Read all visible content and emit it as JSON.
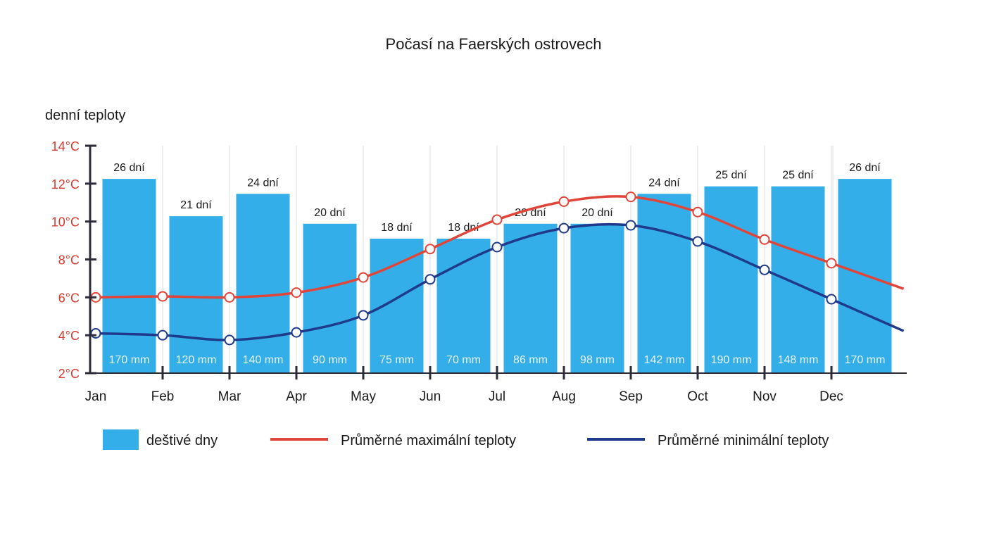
{
  "chart_data": {
    "type": "bar",
    "title": "Počasí na Faerských ostrovech",
    "ylabel": "denní teploty",
    "ylim": [
      2,
      14
    ],
    "yticks": [
      "2°C",
      "4°C",
      "6°C",
      "8°C",
      "10°C",
      "12°C",
      "14°C"
    ],
    "yticks_values": [
      2,
      4,
      6,
      8,
      10,
      12,
      14
    ],
    "categories": [
      "Jan",
      "Feb",
      "Mar",
      "Apr",
      "May",
      "Jun",
      "Jul",
      "Aug",
      "Sep",
      "Oct",
      "Nov",
      "Dec"
    ],
    "grid": true,
    "legend_position": "bottom",
    "series": [
      {
        "name": "deštivé dny",
        "kind": "bar",
        "color": "#33aee8",
        "rain_days": [
          26,
          21,
          24,
          20,
          18,
          18,
          20,
          20,
          24,
          25,
          25,
          26
        ],
        "day_labels": [
          "26 dní",
          "21 dní",
          "24 dní",
          "20 dní",
          "18 dní",
          "18 dní",
          "20 dní",
          "20 dní",
          "24 dní",
          "25 dní",
          "25 dní",
          "26 dní"
        ],
        "precipitation_labels": [
          "170 mm",
          "120 mm",
          "140 mm",
          "90 mm",
          "75 mm",
          "70 mm",
          "86 mm",
          "98 mm",
          "142 mm",
          "190 mm",
          "148 mm",
          "170 mm"
        ]
      },
      {
        "name": "Průměrné maximální teploty",
        "kind": "line",
        "color": "#e0453a",
        "values": [
          6.0,
          6.05,
          6.0,
          6.25,
          7.05,
          8.55,
          10.1,
          11.05,
          11.3,
          10.5,
          9.05,
          7.8
        ]
      },
      {
        "name": "Průměrné minimální teploty",
        "kind": "line",
        "color": "#1f3a8a",
        "values": [
          4.1,
          4.0,
          3.75,
          4.15,
          5.05,
          6.95,
          8.65,
          9.65,
          9.8,
          8.95,
          7.45,
          5.9
        ]
      }
    ]
  }
}
